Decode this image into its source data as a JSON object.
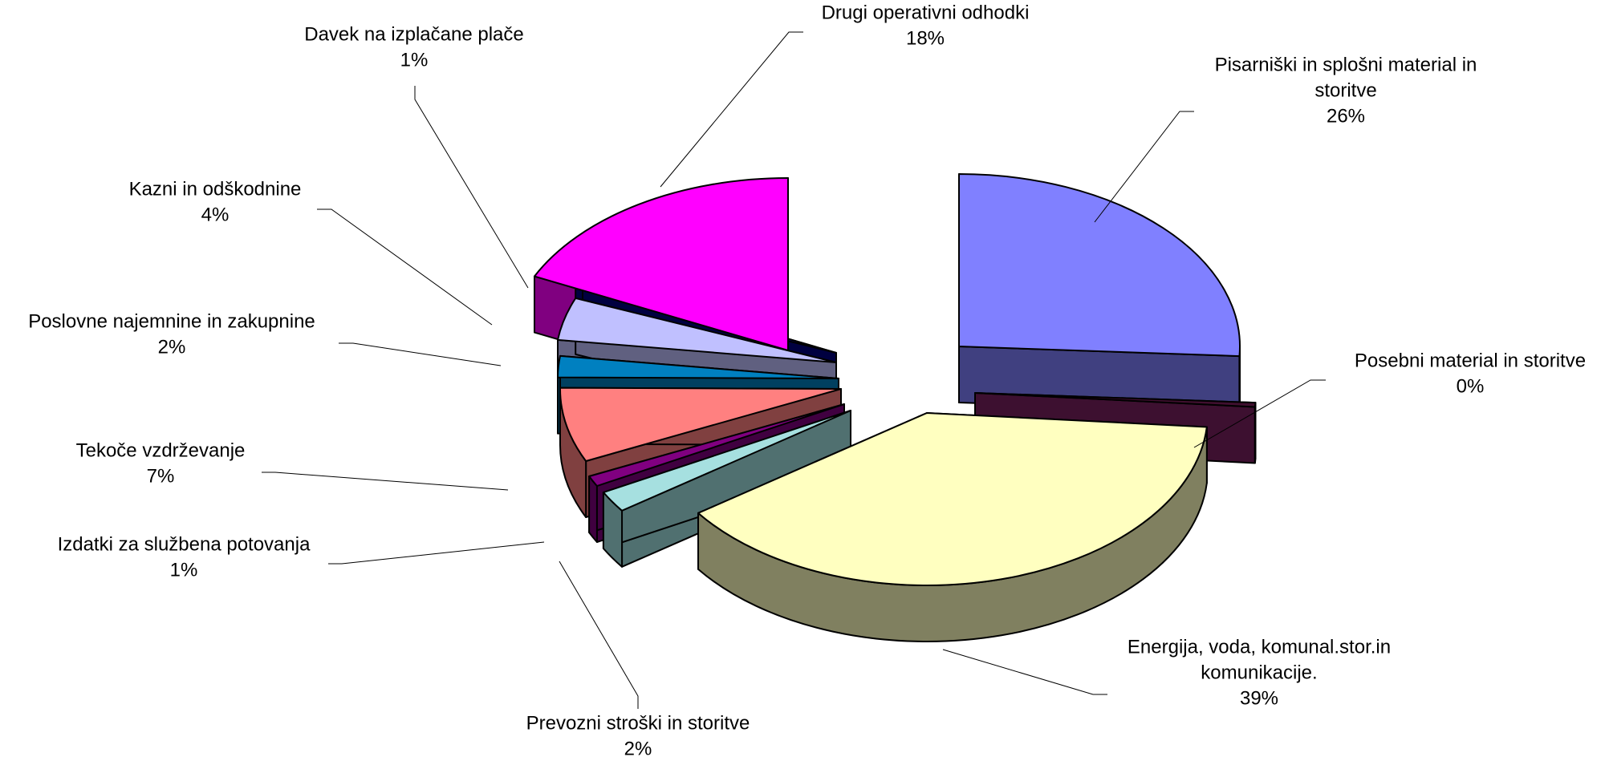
{
  "chart_data": {
    "type": "pie",
    "title": "",
    "slices": [
      {
        "label_lines": [
          "Pisarniški in splošni material in",
          "storitve"
        ],
        "pct_label": "26%",
        "value": 26,
        "color": "#8080FF",
        "side_color": "#404080"
      },
      {
        "label_lines": [
          "Posebni material in storitve"
        ],
        "pct_label": "0%",
        "value": 0,
        "color": "#400F2F",
        "side_color": "#3D1030"
      },
      {
        "label_lines": [
          "Energija, voda, komunal.stor.in",
          "komunikacije."
        ],
        "pct_label": "39%",
        "value": 39,
        "color": "#FFFFC0",
        "side_color": "#808060"
      },
      {
        "label_lines": [
          "Prevozni stroški in storitve"
        ],
        "pct_label": "2%",
        "value": 2,
        "color": "#A6E0E0",
        "side_color": "#507070"
      },
      {
        "label_lines": [
          "Izdatki za službena potovanja"
        ],
        "pct_label": "1%",
        "value": 1,
        "color": "#800080",
        "side_color": "#400040"
      },
      {
        "label_lines": [
          "Tekoče vzdrževanje"
        ],
        "pct_label": "7%",
        "value": 7,
        "color": "#FF8080",
        "side_color": "#804040"
      },
      {
        "label_lines": [
          "Poslovne najemnine in zakupnine"
        ],
        "pct_label": "2%",
        "value": 2,
        "color": "#0080C0",
        "side_color": "#004060"
      },
      {
        "label_lines": [
          "Kazni in odškodnine"
        ],
        "pct_label": "4%",
        "value": 4,
        "color": "#C0C0FF",
        "side_color": "#606080"
      },
      {
        "label_lines": [
          "Davek na izplačane plače"
        ],
        "pct_label": "1%",
        "value": 1,
        "color": "#000080",
        "side_color": "#000040"
      },
      {
        "label_lines": [
          "Drugi operativni odhodki"
        ],
        "pct_label": "18%",
        "value": 18,
        "color": "#FF00FF",
        "side_color": "#800080"
      }
    ]
  }
}
